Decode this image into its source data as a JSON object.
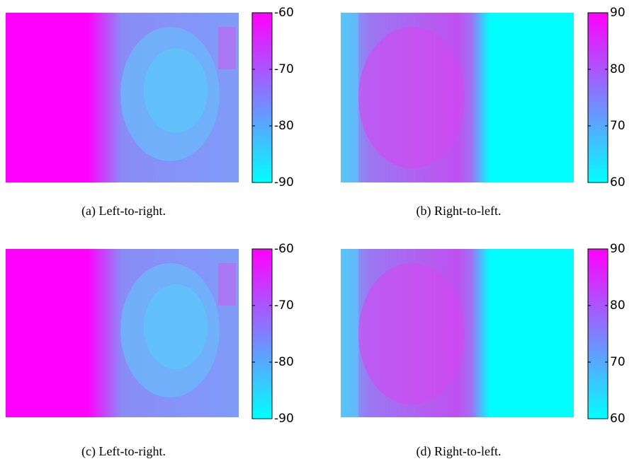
{
  "panels": [
    {
      "caption": "(a) Left-to-right.",
      "colorbar": {
        "lim": [
          -90,
          -60
        ],
        "ticks": [
          -90,
          -80,
          -70,
          -60
        ]
      }
    },
    {
      "caption": "(b) Right-to-left.",
      "colorbar": {
        "lim": [
          60,
          90
        ],
        "ticks": [
          60,
          70,
          80,
          90
        ]
      }
    },
    {
      "caption": "(c) Left-to-right.",
      "colorbar": {
        "lim": [
          -90,
          -60
        ],
        "ticks": [
          -90,
          -80,
          -70,
          -60
        ]
      }
    },
    {
      "caption": "(d) Right-to-left.",
      "colorbar": {
        "lim": [
          60,
          90
        ],
        "ticks": [
          60,
          70,
          80,
          90
        ]
      }
    }
  ]
}
